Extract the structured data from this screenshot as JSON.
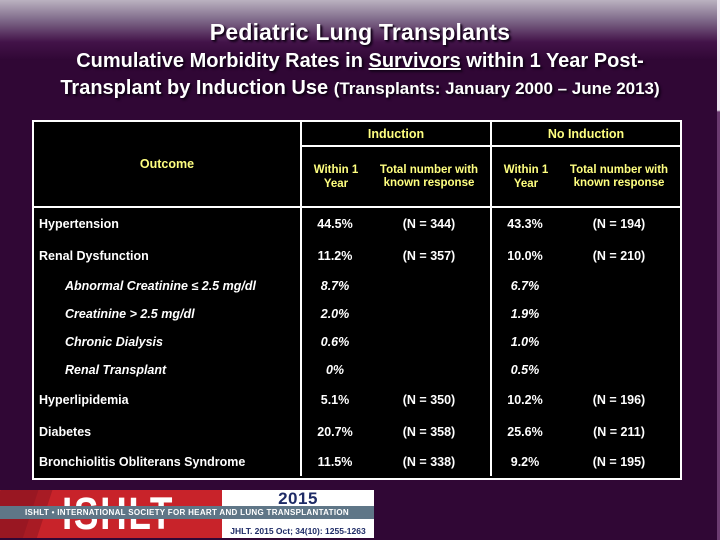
{
  "slide": {
    "title": "Pediatric Lung Transplants",
    "subtitle": {
      "pre": "Cumulative Morbidity Rates in ",
      "underlined": "Survivors",
      "post": " within 1 Year Post-",
      "line2": "Transplant by Induction Use ",
      "paren": "(Transplants: January 2000 – June 2013)"
    }
  },
  "table": {
    "outcome_header": "Outcome",
    "groups": [
      {
        "title": "Induction",
        "sub_within": "Within 1 Year",
        "sub_total": "Total number with known response"
      },
      {
        "title": "No Induction",
        "sub_within": "Within 1 Year",
        "sub_total": "Total number with known response"
      }
    ],
    "rows": [
      {
        "label": "Hypertension",
        "indent": false,
        "ind_pct": "44.5%",
        "ind_n": "(N = 344)",
        "noind_pct": "43.3%",
        "noind_n": "(N = 194)"
      },
      {
        "label": "Renal Dysfunction",
        "indent": false,
        "ind_pct": "11.2%",
        "ind_n": "(N = 357)",
        "noind_pct": "10.0%",
        "noind_n": "(N = 210)"
      },
      {
        "label": "Abnormal Creatinine ≤ 2.5 mg/dl",
        "indent": true,
        "ind_pct": "8.7%",
        "ind_n": "",
        "noind_pct": "6.7%",
        "noind_n": ""
      },
      {
        "label": "Creatinine > 2.5 mg/dl",
        "indent": true,
        "ind_pct": "2.0%",
        "ind_n": "",
        "noind_pct": "1.9%",
        "noind_n": ""
      },
      {
        "label": "Chronic Dialysis",
        "indent": true,
        "ind_pct": "0.6%",
        "ind_n": "",
        "noind_pct": "1.0%",
        "noind_n": ""
      },
      {
        "label": "Renal Transplant",
        "indent": true,
        "ind_pct": "0%",
        "ind_n": "",
        "noind_pct": "0.5%",
        "noind_n": ""
      },
      {
        "label": "Hyperlipidemia",
        "indent": false,
        "ind_pct": "5.1%",
        "ind_n": "(N = 350)",
        "noind_pct": "10.2%",
        "noind_n": "(N = 196)"
      },
      {
        "label": "Diabetes",
        "indent": false,
        "ind_pct": "20.7%",
        "ind_n": "(N = 358)",
        "noind_pct": "25.6%",
        "noind_n": "(N = 211)"
      },
      {
        "label": "Bronchiolitis Obliterans Syndrome",
        "indent": false,
        "ind_pct": "11.5%",
        "ind_n": "(N = 338)",
        "noind_pct": "9.2%",
        "noind_n": "(N = 195)"
      }
    ]
  },
  "footer": {
    "logo_text": "ISHLT",
    "year": "2015",
    "band": "ISHLT • INTERNATIONAL SOCIETY FOR HEART AND LUNG TRANSPLANTATION",
    "citation": "JHLT. 2015 Oct; 34(10): 1255-1263"
  },
  "colors": {
    "slide_background": "#300735",
    "table_background": "#000000",
    "table_border": "#ffffff",
    "header_text": "#ffff80",
    "body_text": "#ffffff",
    "logo_red": "#c8232a",
    "logo_navy": "#1e2b66",
    "logo_band": "#5f7687"
  }
}
